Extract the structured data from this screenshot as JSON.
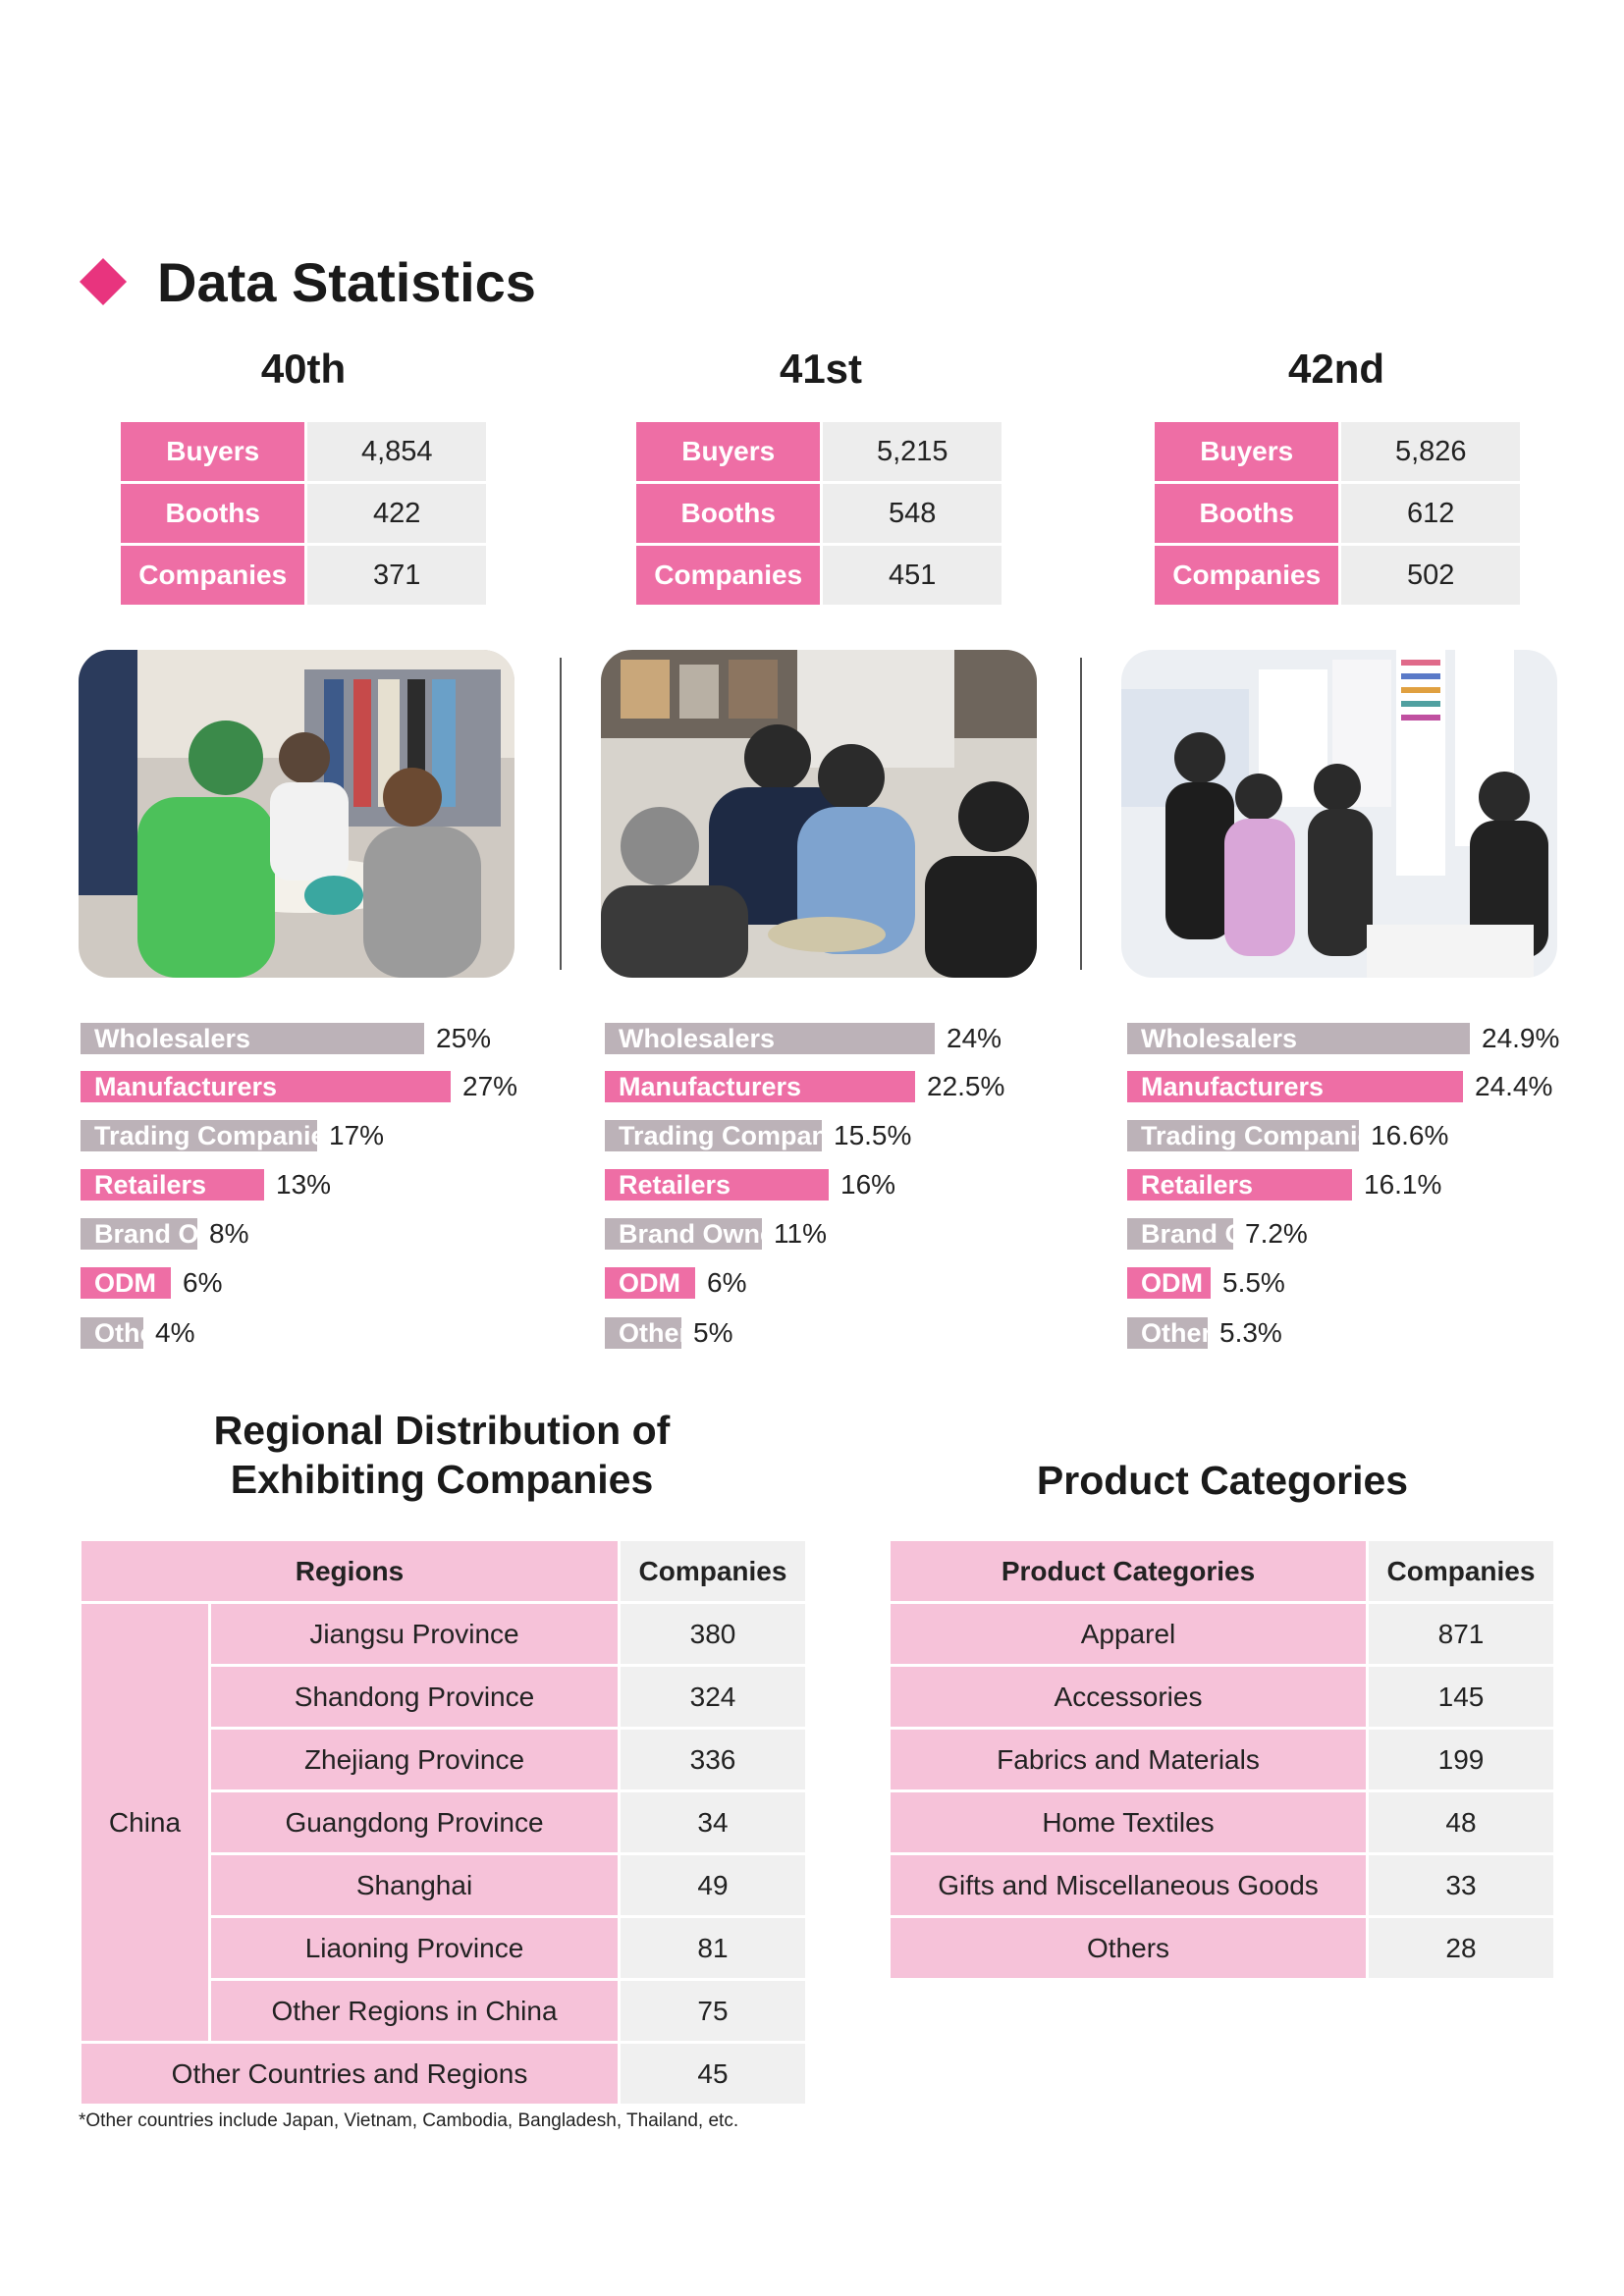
{
  "heading": "Data Statistics",
  "colors": {
    "accent": "#e8347e",
    "pink": "#ee6ea5",
    "gray": "#bcb2b8",
    "light_pink": "#f6c2d9"
  },
  "editions": [
    {
      "title": "40th",
      "stats": [
        {
          "label": "Buyers",
          "value": "4,854"
        },
        {
          "label": "Booths",
          "value": "422"
        },
        {
          "label": "Companies",
          "value": "371"
        }
      ],
      "breakdown": [
        {
          "label": "Wholesalers",
          "pct": "25%",
          "value": 25,
          "color": "gray"
        },
        {
          "label": "Manufacturers",
          "pct": "27%",
          "value": 27,
          "color": "pink"
        },
        {
          "label": "Trading Companies",
          "pct": "17%",
          "value": 17,
          "color": "gray"
        },
        {
          "label": "Retailers",
          "pct": "13%",
          "value": 13,
          "color": "pink"
        },
        {
          "label": "Brand Owners",
          "pct": "8%",
          "value": 8,
          "color": "gray"
        },
        {
          "label": "ODM",
          "pct": "6%",
          "value": 6,
          "color": "pink"
        },
        {
          "label": "Others",
          "pct": "4%",
          "value": 4,
          "color": "gray"
        }
      ]
    },
    {
      "title": "41st",
      "stats": [
        {
          "label": "Buyers",
          "value": "5,215"
        },
        {
          "label": "Booths",
          "value": "548"
        },
        {
          "label": "Companies",
          "value": "451"
        }
      ],
      "breakdown": [
        {
          "label": "Wholesalers",
          "pct": "24%",
          "value": 24,
          "color": "gray"
        },
        {
          "label": "Manufacturers",
          "pct": "22.5%",
          "value": 22.5,
          "color": "pink"
        },
        {
          "label": "Trading Companies",
          "pct": "15.5%",
          "value": 15.5,
          "color": "gray"
        },
        {
          "label": "Retailers",
          "pct": "16%",
          "value": 16,
          "color": "pink"
        },
        {
          "label": "Brand Owners",
          "pct": "11%",
          "value": 11,
          "color": "gray"
        },
        {
          "label": "ODM",
          "pct": "6%",
          "value": 6,
          "color": "pink"
        },
        {
          "label": "Others",
          "pct": "5%",
          "value": 5,
          "color": "gray"
        }
      ]
    },
    {
      "title": "42nd",
      "stats": [
        {
          "label": "Buyers",
          "value": "5,826"
        },
        {
          "label": "Booths",
          "value": "612"
        },
        {
          "label": "Companies",
          "value": "502"
        }
      ],
      "breakdown": [
        {
          "label": "Wholesalers",
          "pct": "24.9%",
          "value": 24.9,
          "color": "gray"
        },
        {
          "label": "Manufacturers",
          "pct": "24.4%",
          "value": 24.4,
          "color": "pink"
        },
        {
          "label": "Trading Companies",
          "pct": "16.6%",
          "value": 16.6,
          "color": "gray"
        },
        {
          "label": "Retailers",
          "pct": "16.1%",
          "value": 16.1,
          "color": "pink"
        },
        {
          "label": "Brand Owners",
          "pct": "7.2%",
          "value": 7.2,
          "color": "gray"
        },
        {
          "label": "ODM",
          "pct": "5.5%",
          "value": 5.5,
          "color": "pink"
        },
        {
          "label": "Others",
          "pct": "5.3%",
          "value": 5.3,
          "color": "gray"
        }
      ]
    }
  ],
  "regional": {
    "title_line1": "Regional Distribution of",
    "title_line2": "Exhibiting Companies",
    "header_regions": "Regions",
    "header_companies": "Companies",
    "group_label": "China",
    "rows": [
      {
        "region": "Jiangsu Province",
        "companies": "380"
      },
      {
        "region": "Shandong Province",
        "companies": "324"
      },
      {
        "region": "Zhejiang Province",
        "companies": "336"
      },
      {
        "region": "Guangdong Province",
        "companies": "34"
      },
      {
        "region": "Shanghai",
        "companies": "49"
      },
      {
        "region": "Liaoning Province",
        "companies": "81"
      },
      {
        "region": "Other Regions in China",
        "companies": "75"
      }
    ],
    "other": {
      "region": "Other Countries and Regions",
      "companies": "45"
    },
    "footnote": "*Other countries include Japan, Vietnam, Cambodia, Bangladesh, Thailand, etc."
  },
  "products": {
    "title": "Product Categories",
    "header_category": "Product Categories",
    "header_companies": "Companies",
    "rows": [
      {
        "category": "Apparel",
        "companies": "871"
      },
      {
        "category": "Accessories",
        "companies": "145"
      },
      {
        "category": "Fabrics and Materials",
        "companies": "199"
      },
      {
        "category": "Home Textiles",
        "companies": "48"
      },
      {
        "category": "Gifts and Miscellaneous Goods",
        "companies": "33"
      },
      {
        "category": "Others",
        "companies": "28"
      }
    ]
  }
}
